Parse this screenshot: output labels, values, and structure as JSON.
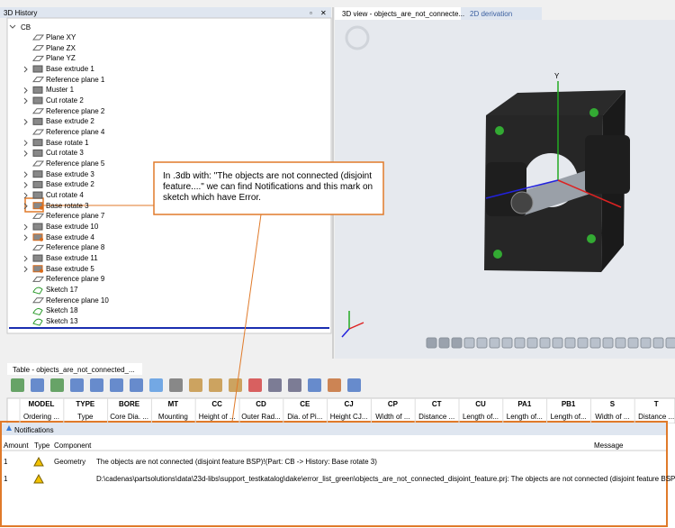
{
  "history": {
    "title": "3D History",
    "root": "CB",
    "items": [
      {
        "label": "Plane XY",
        "icon": "plane",
        "expandable": false
      },
      {
        "label": "Plane ZX",
        "icon": "plane",
        "expandable": false
      },
      {
        "label": "Plane YZ",
        "icon": "plane",
        "expandable": false
      },
      {
        "label": "Base extrude 1",
        "icon": "solid",
        "expandable": true
      },
      {
        "label": "Reference plane 1",
        "icon": "plane",
        "expandable": false
      },
      {
        "label": "Muster 1",
        "icon": "pattern",
        "expandable": true
      },
      {
        "label": "Cut rotate 2",
        "icon": "solid",
        "expandable": true
      },
      {
        "label": "Reference plane 2",
        "icon": "plane",
        "expandable": false
      },
      {
        "label": "Base extrude 2",
        "icon": "solid",
        "expandable": true
      },
      {
        "label": "Reference plane 4",
        "icon": "plane",
        "expandable": false
      },
      {
        "label": "Base rotate 1",
        "icon": "solid",
        "expandable": true
      },
      {
        "label": "Cut rotate 3",
        "icon": "solid",
        "expandable": true
      },
      {
        "label": "Reference plane 5",
        "icon": "plane",
        "expandable": false
      },
      {
        "label": "Base extrude 3",
        "icon": "solid",
        "expandable": true
      },
      {
        "label": "Base extrude 2",
        "icon": "solid",
        "expandable": true
      },
      {
        "label": "Cut rotate 4",
        "icon": "solid",
        "expandable": true
      },
      {
        "label": "Base rotate 3",
        "icon": "error",
        "expandable": true
      },
      {
        "label": "Reference plane 7",
        "icon": "plane",
        "expandable": false
      },
      {
        "label": "Base extrude 10",
        "icon": "solid",
        "expandable": true
      },
      {
        "label": "Base extrude 4",
        "icon": "error",
        "expandable": true
      },
      {
        "label": "Reference plane 8",
        "icon": "plane",
        "expandable": false
      },
      {
        "label": "Base extrude 11",
        "icon": "solid",
        "expandable": true
      },
      {
        "label": "Base extrude 5",
        "icon": "error",
        "expandable": true
      },
      {
        "label": "Reference plane 9",
        "icon": "plane",
        "expandable": false
      },
      {
        "label": "Sketch 17",
        "icon": "sketch",
        "expandable": false
      },
      {
        "label": "Reference plane 10",
        "icon": "plane",
        "expandable": false
      },
      {
        "label": "Sketch 18",
        "icon": "sketch",
        "expandable": false
      },
      {
        "label": "Sketch 13",
        "icon": "sketch",
        "expandable": false
      }
    ]
  },
  "view_tabs": [
    "3D view - objects_are_not_connecte...",
    "2D derivation"
  ],
  "view": {
    "axis_label": "Y"
  },
  "callout": "In .3db with: \"The objects are not connected (disjoint feature....\" we can find Notifications and this mark on sketch which have Error.",
  "table": {
    "title": "Table - objects_are_not_connected_...",
    "columns": [
      {
        "code": "MODEL",
        "name": "Ordering ..."
      },
      {
        "code": "TYPE",
        "name": "Type"
      },
      {
        "code": "BORE",
        "name": "Core Dia. ..."
      },
      {
        "code": "MT",
        "name": "Mounting"
      },
      {
        "code": "CC",
        "name": "Height of ..."
      },
      {
        "code": "CD",
        "name": "Outer Rad..."
      },
      {
        "code": "CE",
        "name": "Dia. of Pi..."
      },
      {
        "code": "CJ",
        "name": "Height CJ..."
      },
      {
        "code": "CP",
        "name": "Width of ..."
      },
      {
        "code": "CT",
        "name": "Distance ..."
      },
      {
        "code": "CU",
        "name": "Length of..."
      },
      {
        "code": "PA1",
        "name": "Length of..."
      },
      {
        "code": "PB1",
        "name": "Length of..."
      },
      {
        "code": "S",
        "name": "Width of ..."
      },
      {
        "code": "T",
        "name": "Distance ..."
      }
    ]
  },
  "notifications": {
    "title": "Notifications",
    "headers": [
      "Amount",
      "Type",
      "Component",
      "Message"
    ],
    "rows": [
      {
        "amount": "1",
        "component": "Geometry",
        "message": "The objects are not connected (disjoint feature BSP)!(Part: CB -> History: Base rotate 3)"
      },
      {
        "amount": "1",
        "message": "D:\\cadenas\\partsolutions\\data\\23d-libs\\support_testkatalog\\dake\\error_list_green\\objects_are_not_connected_disjoint_feature.prj: The objects are not connected (disjoint feature BSP)!"
      }
    ]
  }
}
